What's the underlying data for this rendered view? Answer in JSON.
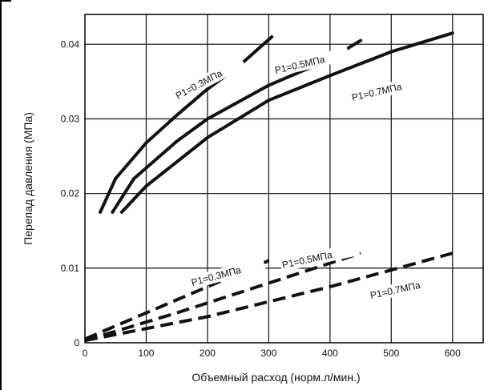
{
  "chart_data": {
    "type": "line",
    "xlabel": "Объемный расход (норм.л/мин.)",
    "ylabel": "Перепад давления (МПа)",
    "xlim": [
      0,
      650
    ],
    "ylim": [
      0,
      0.044
    ],
    "x_ticks": [
      "0",
      "100",
      "200",
      "300",
      "400",
      "500",
      "600"
    ],
    "y_ticks": [
      "0",
      "0.01",
      "0.02",
      "0.03",
      "0.04"
    ],
    "grid": true,
    "series": [
      {
        "name": "P1=0.3МПа",
        "style": "solid",
        "x": [
          25,
          50,
          100,
          150,
          200,
          250,
          305
        ],
        "y": [
          0.0175,
          0.022,
          0.0268,
          0.0305,
          0.034,
          0.037,
          0.041
        ]
      },
      {
        "name": "P1=0.5МПа",
        "style": "solid",
        "x": [
          45,
          80,
          150,
          200,
          300,
          400,
          450
        ],
        "y": [
          0.0175,
          0.022,
          0.027,
          0.03,
          0.0345,
          0.038,
          0.0405
        ]
      },
      {
        "name": "P1=0.7МПа",
        "style": "solid",
        "x": [
          60,
          100,
          200,
          300,
          400,
          500,
          600
        ],
        "y": [
          0.0175,
          0.021,
          0.0275,
          0.0325,
          0.0358,
          0.039,
          0.0415
        ]
      },
      {
        "name": "P1=0.3МПа",
        "style": "dashed",
        "x": [
          0,
          100,
          200,
          300
        ],
        "y": [
          0.0005,
          0.004,
          0.0075,
          0.011
        ]
      },
      {
        "name": "P1=0.5МПа",
        "style": "dashed",
        "x": [
          0,
          150,
          300,
          450
        ],
        "y": [
          0.0003,
          0.004,
          0.008,
          0.012
        ]
      },
      {
        "name": "P1=0.7МПа",
        "style": "dashed",
        "x": [
          0,
          200,
          400,
          600
        ],
        "y": [
          0.0003,
          0.0035,
          0.0075,
          0.012
        ]
      }
    ],
    "annotations": [
      "P1=0.3МПа",
      "P1=0.5МПа",
      "P1=0.7МПа",
      "P1=0.3МПа",
      "P1=0.5МПа",
      "P1=0.7МПа"
    ]
  }
}
